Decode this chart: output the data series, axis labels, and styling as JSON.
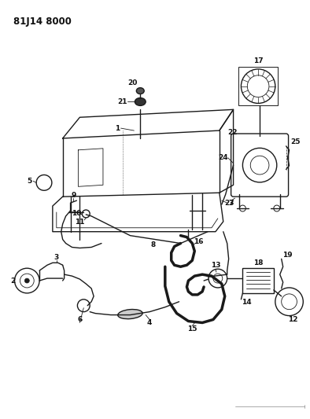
{
  "title": "81J14 8000",
  "background_color": "#ffffff",
  "line_color": "#1a1a1a",
  "label_color": "#111111",
  "figsize": [
    3.94,
    5.33
  ],
  "dpi": 100
}
